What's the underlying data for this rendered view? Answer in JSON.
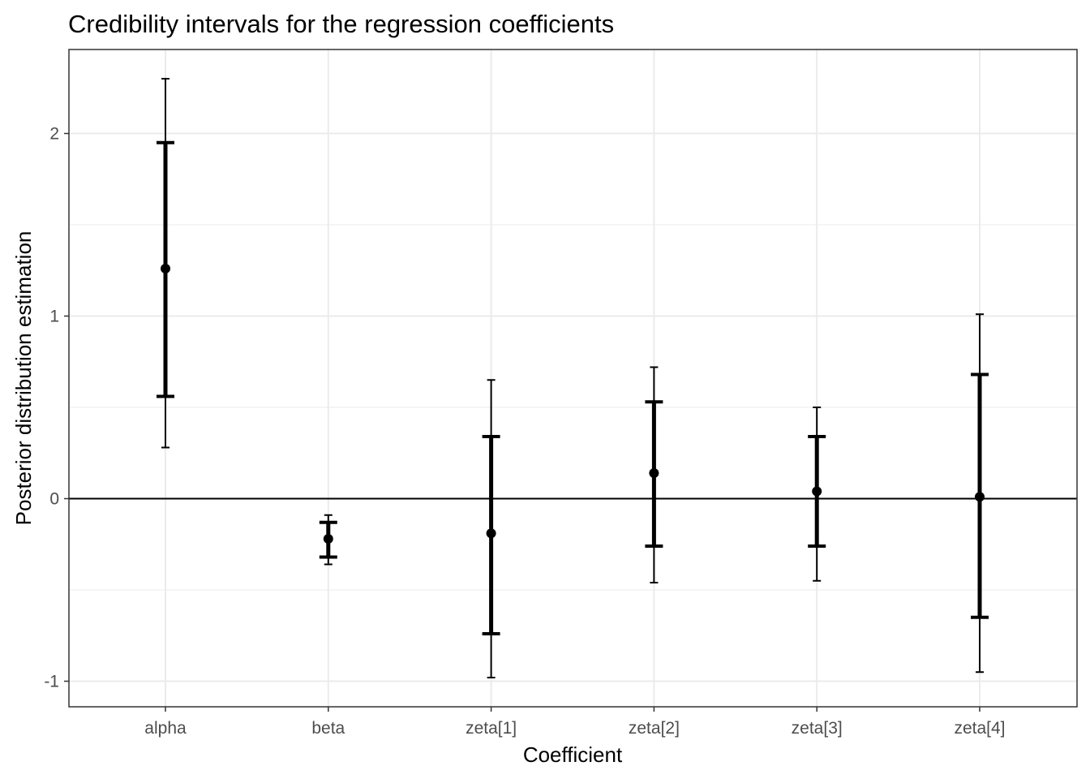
{
  "chart_data": {
    "type": "errorbar",
    "title": "Credibility intervals for the regression coefficients",
    "xlabel": "Coefficient",
    "ylabel": "Posterior distribution estimation",
    "categories": [
      "alpha",
      "beta",
      "zeta[1]",
      "zeta[2]",
      "zeta[3]",
      "zeta[4]"
    ],
    "estimate": [
      1.26,
      -0.22,
      -0.19,
      0.14,
      0.04,
      0.01
    ],
    "inner_interval": [
      [
        0.56,
        1.95
      ],
      [
        -0.32,
        -0.13
      ],
      [
        -0.74,
        0.34
      ],
      [
        -0.26,
        0.53
      ],
      [
        -0.26,
        0.34
      ],
      [
        -0.65,
        0.68
      ]
    ],
    "outer_interval": [
      [
        0.28,
        2.3
      ],
      [
        -0.36,
        -0.09
      ],
      [
        -0.98,
        0.65
      ],
      [
        -0.46,
        0.72
      ],
      [
        -0.45,
        0.5
      ],
      [
        -0.95,
        1.01
      ]
    ],
    "ylim": [
      -1.14,
      2.46
    ],
    "yticks": [
      -1,
      0,
      1,
      2
    ],
    "ytick_labels": [
      "-1",
      "0",
      "1",
      "2"
    ],
    "reference_line": 0,
    "grid": true,
    "theme": "bw",
    "colors": {
      "marks": "#000000",
      "grid": "#ebebeb",
      "panel_border": "#333333",
      "tick_text": "#4d4d4d"
    }
  }
}
